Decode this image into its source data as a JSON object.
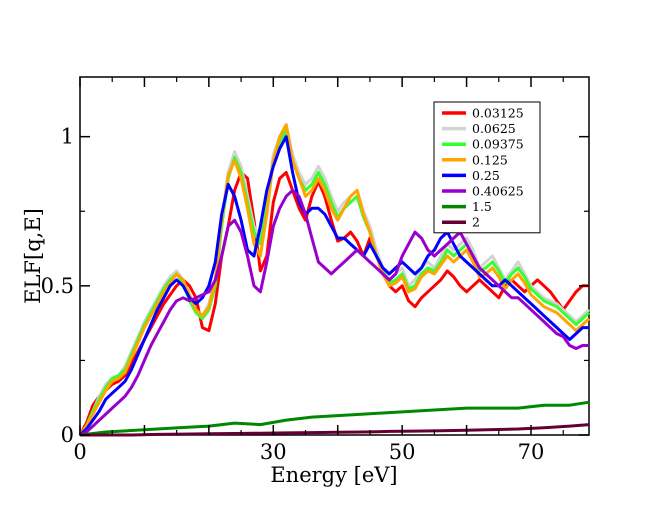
{
  "chart_data": {
    "type": "line",
    "xlabel": "Energy [eV]",
    "ylabel": "ELF[q,E]",
    "xlim": [
      0,
      79
    ],
    "ylim": [
      0,
      1.2
    ],
    "xticks": [
      0,
      30,
      50,
      70
    ],
    "yticks": [
      0,
      0.5,
      1
    ],
    "ytick_labels": [
      "0",
      "0.5",
      "1"
    ],
    "grid": false,
    "legend_placement": "top-right",
    "series": [
      {
        "name": "0.03125",
        "color": "#ff0000",
        "x": [
          0,
          1,
          2,
          3,
          4,
          5,
          6,
          7,
          8,
          9,
          10,
          11,
          12,
          13,
          14,
          15,
          16,
          17,
          18,
          19,
          20,
          21,
          22,
          23,
          24,
          25,
          26,
          27,
          28,
          29,
          30,
          31,
          32,
          33,
          34,
          35,
          36,
          37,
          38,
          39,
          40,
          41,
          42,
          43,
          44,
          45,
          46,
          47,
          48,
          49,
          50,
          51,
          52,
          53,
          54,
          55,
          56,
          57,
          58,
          59,
          60,
          61,
          62,
          63,
          64,
          65,
          66,
          67,
          68,
          69,
          70,
          71,
          72,
          73,
          74,
          75,
          76,
          77,
          78,
          79
        ],
        "y": [
          0,
          0.04,
          0.1,
          0.13,
          0.15,
          0.17,
          0.18,
          0.2,
          0.24,
          0.28,
          0.32,
          0.36,
          0.4,
          0.44,
          0.47,
          0.5,
          0.52,
          0.5,
          0.46,
          0.36,
          0.35,
          0.44,
          0.6,
          0.7,
          0.82,
          0.88,
          0.86,
          0.72,
          0.55,
          0.6,
          0.78,
          0.86,
          0.88,
          0.82,
          0.76,
          0.72,
          0.8,
          0.85,
          0.8,
          0.72,
          0.65,
          0.66,
          0.68,
          0.65,
          0.6,
          0.66,
          0.6,
          0.55,
          0.5,
          0.48,
          0.5,
          0.45,
          0.43,
          0.46,
          0.48,
          0.5,
          0.52,
          0.55,
          0.53,
          0.5,
          0.48,
          0.5,
          0.52,
          0.5,
          0.48,
          0.46,
          0.5,
          0.52,
          0.5,
          0.48,
          0.5,
          0.52,
          0.5,
          0.48,
          0.45,
          0.42,
          0.45,
          0.48,
          0.5,
          0.5
        ]
      },
      {
        "name": "0.0625",
        "color": "#d3d3d3",
        "x": [
          0,
          1,
          2,
          3,
          4,
          5,
          6,
          7,
          8,
          9,
          10,
          11,
          12,
          13,
          14,
          15,
          16,
          17,
          18,
          19,
          20,
          21,
          22,
          23,
          24,
          25,
          26,
          27,
          28,
          29,
          30,
          31,
          32,
          33,
          34,
          35,
          36,
          37,
          38,
          39,
          40,
          41,
          42,
          43,
          44,
          45,
          46,
          47,
          48,
          49,
          50,
          51,
          52,
          53,
          54,
          55,
          56,
          57,
          58,
          59,
          60,
          61,
          62,
          63,
          64,
          65,
          66,
          67,
          68,
          69,
          70,
          71,
          72,
          73,
          74,
          75,
          76,
          77,
          78,
          79
        ],
        "y": [
          0,
          0.03,
          0.08,
          0.13,
          0.17,
          0.19,
          0.2,
          0.23,
          0.28,
          0.33,
          0.38,
          0.42,
          0.46,
          0.5,
          0.53,
          0.55,
          0.52,
          0.46,
          0.42,
          0.4,
          0.44,
          0.52,
          0.72,
          0.88,
          0.95,
          0.9,
          0.8,
          0.7,
          0.66,
          0.78,
          0.94,
          1.0,
          1.04,
          0.94,
          0.88,
          0.84,
          0.86,
          0.9,
          0.86,
          0.8,
          0.75,
          0.78,
          0.8,
          0.82,
          0.75,
          0.7,
          0.62,
          0.56,
          0.52,
          0.54,
          0.56,
          0.5,
          0.52,
          0.56,
          0.58,
          0.56,
          0.6,
          0.64,
          0.62,
          0.64,
          0.66,
          0.62,
          0.56,
          0.58,
          0.6,
          0.56,
          0.52,
          0.55,
          0.58,
          0.54,
          0.5,
          0.48,
          0.46,
          0.45,
          0.44,
          0.42,
          0.4,
          0.38,
          0.4,
          0.42
        ]
      },
      {
        "name": "0.09375",
        "color": "#33ff33",
        "x": [
          0,
          1,
          2,
          3,
          4,
          5,
          6,
          7,
          8,
          9,
          10,
          11,
          12,
          13,
          14,
          15,
          16,
          17,
          18,
          19,
          20,
          21,
          22,
          23,
          24,
          25,
          26,
          27,
          28,
          29,
          30,
          31,
          32,
          33,
          34,
          35,
          36,
          37,
          38,
          39,
          40,
          41,
          42,
          43,
          44,
          45,
          46,
          47,
          48,
          49,
          50,
          51,
          52,
          53,
          54,
          55,
          56,
          57,
          58,
          59,
          60,
          61,
          62,
          63,
          64,
          65,
          66,
          67,
          68,
          69,
          70,
          71,
          72,
          73,
          74,
          75,
          76,
          77,
          78,
          79
        ],
        "y": [
          0,
          0.03,
          0.08,
          0.12,
          0.16,
          0.19,
          0.2,
          0.22,
          0.27,
          0.32,
          0.37,
          0.41,
          0.45,
          0.49,
          0.52,
          0.54,
          0.51,
          0.45,
          0.41,
          0.39,
          0.42,
          0.5,
          0.7,
          0.86,
          0.93,
          0.88,
          0.78,
          0.68,
          0.64,
          0.76,
          0.92,
          0.98,
          1.02,
          0.92,
          0.86,
          0.82,
          0.84,
          0.88,
          0.84,
          0.78,
          0.73,
          0.76,
          0.78,
          0.8,
          0.73,
          0.68,
          0.6,
          0.55,
          0.51,
          0.52,
          0.54,
          0.49,
          0.5,
          0.54,
          0.56,
          0.55,
          0.58,
          0.62,
          0.6,
          0.62,
          0.64,
          0.6,
          0.55,
          0.56,
          0.58,
          0.55,
          0.51,
          0.54,
          0.56,
          0.53,
          0.49,
          0.47,
          0.45,
          0.44,
          0.43,
          0.41,
          0.39,
          0.37,
          0.39,
          0.41
        ]
      },
      {
        "name": "0.125",
        "color": "#ffa500",
        "x": [
          0,
          1,
          2,
          3,
          4,
          5,
          6,
          7,
          8,
          9,
          10,
          11,
          12,
          13,
          14,
          15,
          16,
          17,
          18,
          19,
          20,
          21,
          22,
          23,
          24,
          25,
          26,
          27,
          28,
          29,
          30,
          31,
          32,
          33,
          34,
          35,
          36,
          37,
          38,
          39,
          40,
          41,
          42,
          43,
          44,
          45,
          46,
          47,
          48,
          49,
          50,
          51,
          52,
          53,
          54,
          55,
          56,
          57,
          58,
          59,
          60,
          61,
          62,
          63,
          64,
          65,
          66,
          67,
          68,
          69,
          70,
          71,
          72,
          73,
          74,
          75,
          76,
          77,
          78,
          79
        ],
        "y": [
          0,
          0.03,
          0.07,
          0.11,
          0.15,
          0.18,
          0.19,
          0.21,
          0.26,
          0.31,
          0.36,
          0.4,
          0.44,
          0.48,
          0.51,
          0.54,
          0.52,
          0.47,
          0.42,
          0.4,
          0.43,
          0.52,
          0.72,
          0.87,
          0.92,
          0.86,
          0.76,
          0.64,
          0.6,
          0.74,
          0.92,
          1.0,
          1.04,
          0.92,
          0.86,
          0.8,
          0.82,
          0.86,
          0.82,
          0.76,
          0.72,
          0.76,
          0.8,
          0.82,
          0.74,
          0.68,
          0.6,
          0.54,
          0.5,
          0.51,
          0.53,
          0.48,
          0.49,
          0.53,
          0.55,
          0.54,
          0.57,
          0.6,
          0.58,
          0.6,
          0.62,
          0.58,
          0.53,
          0.54,
          0.56,
          0.53,
          0.49,
          0.52,
          0.54,
          0.51,
          0.47,
          0.45,
          0.43,
          0.42,
          0.41,
          0.39,
          0.37,
          0.35,
          0.37,
          0.39
        ]
      },
      {
        "name": "0.25",
        "color": "#0000ff",
        "x": [
          0,
          1,
          2,
          3,
          4,
          5,
          6,
          7,
          8,
          9,
          10,
          11,
          12,
          13,
          14,
          15,
          16,
          17,
          18,
          19,
          20,
          21,
          22,
          23,
          24,
          25,
          26,
          27,
          28,
          29,
          30,
          31,
          32,
          33,
          34,
          35,
          36,
          37,
          38,
          39,
          40,
          41,
          42,
          43,
          44,
          45,
          46,
          47,
          48,
          49,
          50,
          51,
          52,
          53,
          54,
          55,
          56,
          57,
          58,
          59,
          60,
          61,
          62,
          63,
          64,
          65,
          66,
          67,
          68,
          69,
          70,
          71,
          72,
          73,
          74,
          75,
          76,
          77,
          78,
          79
        ],
        "y": [
          0,
          0.02,
          0.05,
          0.08,
          0.12,
          0.14,
          0.16,
          0.18,
          0.22,
          0.27,
          0.32,
          0.37,
          0.42,
          0.46,
          0.5,
          0.52,
          0.5,
          0.46,
          0.44,
          0.46,
          0.5,
          0.58,
          0.74,
          0.84,
          0.8,
          0.72,
          0.62,
          0.6,
          0.7,
          0.82,
          0.9,
          0.96,
          1.0,
          0.88,
          0.78,
          0.74,
          0.76,
          0.76,
          0.74,
          0.7,
          0.66,
          0.66,
          0.64,
          0.62,
          0.6,
          0.64,
          0.6,
          0.56,
          0.54,
          0.56,
          0.58,
          0.56,
          0.54,
          0.56,
          0.6,
          0.62,
          0.66,
          0.68,
          0.64,
          0.6,
          0.58,
          0.56,
          0.54,
          0.52,
          0.5,
          0.5,
          0.52,
          0.5,
          0.48,
          0.46,
          0.44,
          0.42,
          0.4,
          0.38,
          0.36,
          0.34,
          0.32,
          0.34,
          0.36,
          0.36
        ]
      },
      {
        "name": "0.40625",
        "color": "#9900cc",
        "x": [
          0,
          1,
          2,
          3,
          4,
          5,
          6,
          7,
          8,
          9,
          10,
          11,
          12,
          13,
          14,
          15,
          16,
          17,
          18,
          19,
          20,
          21,
          22,
          23,
          24,
          25,
          26,
          27,
          28,
          29,
          30,
          31,
          32,
          33,
          34,
          35,
          36,
          37,
          38,
          39,
          40,
          41,
          42,
          43,
          44,
          45,
          46,
          47,
          48,
          49,
          50,
          51,
          52,
          53,
          54,
          55,
          56,
          57,
          58,
          59,
          60,
          61,
          62,
          63,
          64,
          65,
          66,
          67,
          68,
          69,
          70,
          71,
          72,
          73,
          74,
          75,
          76,
          77,
          78,
          79
        ],
        "y": [
          0,
          0.01,
          0.03,
          0.05,
          0.07,
          0.09,
          0.11,
          0.13,
          0.16,
          0.2,
          0.25,
          0.3,
          0.34,
          0.38,
          0.42,
          0.45,
          0.46,
          0.45,
          0.46,
          0.47,
          0.48,
          0.52,
          0.6,
          0.7,
          0.72,
          0.68,
          0.6,
          0.5,
          0.48,
          0.58,
          0.7,
          0.76,
          0.8,
          0.82,
          0.8,
          0.74,
          0.66,
          0.58,
          0.56,
          0.54,
          0.56,
          0.58,
          0.6,
          0.62,
          0.6,
          0.58,
          0.56,
          0.54,
          0.52,
          0.54,
          0.6,
          0.64,
          0.68,
          0.66,
          0.62,
          0.6,
          0.62,
          0.64,
          0.66,
          0.68,
          0.64,
          0.6,
          0.56,
          0.54,
          0.52,
          0.5,
          0.48,
          0.46,
          0.46,
          0.44,
          0.42,
          0.4,
          0.38,
          0.36,
          0.34,
          0.33,
          0.3,
          0.29,
          0.3,
          0.3
        ]
      },
      {
        "name": "1.5",
        "color": "#008800",
        "x": [
          0,
          4,
          8,
          12,
          16,
          20,
          24,
          28,
          32,
          36,
          40,
          44,
          48,
          52,
          56,
          60,
          64,
          68,
          72,
          76,
          79
        ],
        "y": [
          0,
          0.01,
          0.015,
          0.02,
          0.025,
          0.03,
          0.04,
          0.035,
          0.05,
          0.06,
          0.065,
          0.07,
          0.075,
          0.08,
          0.085,
          0.09,
          0.09,
          0.09,
          0.1,
          0.1,
          0.11
        ]
      },
      {
        "name": "2",
        "color": "#660033",
        "x": [
          0,
          4,
          8,
          12,
          16,
          20,
          24,
          28,
          32,
          36,
          40,
          44,
          48,
          52,
          56,
          60,
          64,
          68,
          72,
          76,
          79
        ],
        "y": [
          0,
          0,
          0,
          0.002,
          0.003,
          0.004,
          0.005,
          0.006,
          0.007,
          0.008,
          0.009,
          0.01,
          0.012,
          0.013,
          0.014,
          0.016,
          0.018,
          0.02,
          0.024,
          0.03,
          0.035
        ]
      }
    ]
  }
}
